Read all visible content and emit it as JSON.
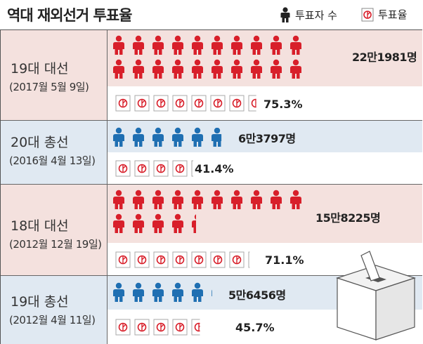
{
  "title": "역대 재외선거 투표율",
  "legend": {
    "voters": "투표자 수",
    "turnout": "투표율"
  },
  "colors": {
    "red": "#d81f2a",
    "blue": "#1f6fb2",
    "pink_bg": "#f4e1de",
    "blue_bg": "#e0e9f2"
  },
  "icons": {
    "voter": "person-icon",
    "turnout": "ballot-stamp-icon"
  },
  "chart_data": {
    "type": "pictogram",
    "title": "역대 재외선거 투표율",
    "series": [
      {
        "name": "투표자 수"
      },
      {
        "name": "투표율"
      }
    ],
    "categories": [
      "19대 대선",
      "20대 총선",
      "18대 대선",
      "19대 총선"
    ],
    "rows": [
      {
        "label": "19대 대선",
        "date": "(2017월 5월 9일)",
        "voters_text": "22만1981명",
        "voters": 221981,
        "turnout_text": "75.3%",
        "turnout": 75.3,
        "color": "red"
      },
      {
        "label": "20대 총선",
        "date": "(2016월 4월 13일)",
        "voters_text": "6만3797명",
        "voters": 63797,
        "turnout_text": "41.4%",
        "turnout": 41.4,
        "color": "blue"
      },
      {
        "label": "18대 대선",
        "date": "(2012월 12월 19일)",
        "voters_text": "15만8225명",
        "voters": 158225,
        "turnout_text": "71.1%",
        "turnout": 71.1,
        "color": "red"
      },
      {
        "label": "19대 총선",
        "date": "(2012월 4월 11일)",
        "voters_text": "5만6456명",
        "voters": 56456,
        "turnout_text": "45.7%",
        "turnout": 45.7,
        "color": "blue"
      }
    ]
  }
}
